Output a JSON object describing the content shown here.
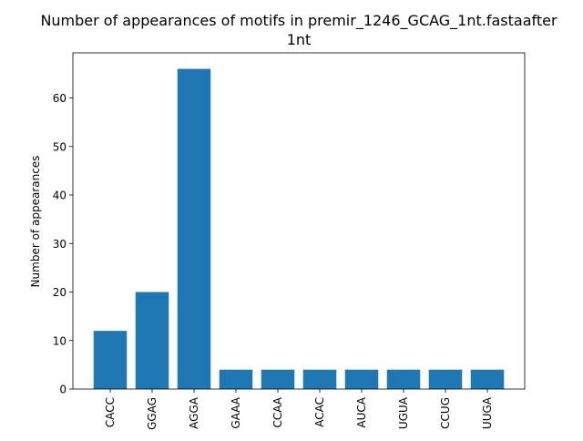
{
  "chart_data": {
    "type": "bar",
    "title_line1": "Number of appearances of motifs in premir_1246_GCAG_1nt.fastaafter",
    "title_line2": "1nt",
    "xlabel": "",
    "ylabel": "Number of appearances",
    "categories": [
      "CACC",
      "GGAG",
      "AGGA",
      "GAAA",
      "CCAA",
      "ACAC",
      "AUCA",
      "UGUA",
      "CCUG",
      "UUGA"
    ],
    "values": [
      12,
      20,
      66,
      4,
      4,
      4,
      4,
      4,
      4,
      4
    ],
    "ylim": [
      0,
      69.3
    ],
    "yticks": [
      0,
      10,
      20,
      30,
      40,
      50,
      60
    ],
    "bar_color": "#1f77b4",
    "grid": false,
    "legend": "none"
  }
}
